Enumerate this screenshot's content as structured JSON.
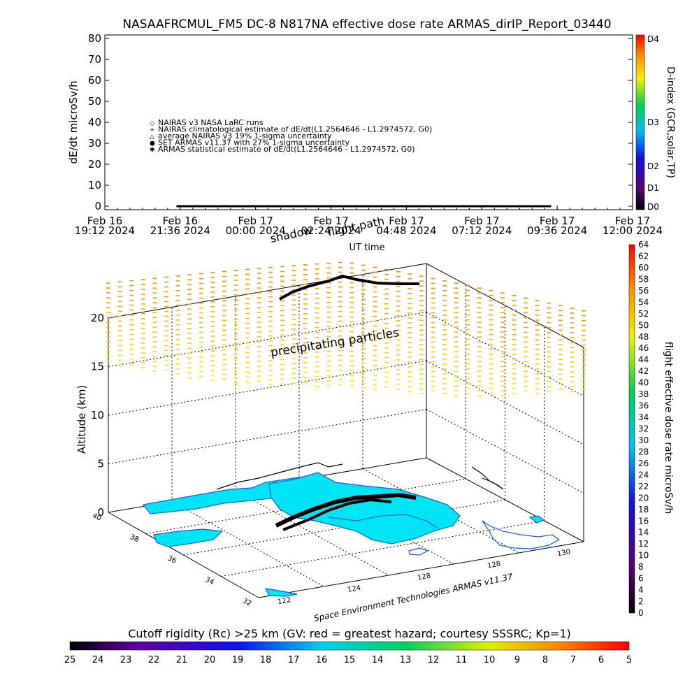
{
  "header": {
    "title": "NASAAFRCMUL_FM5 DC-8    N817NA effective dose rate ARMAS_dirIP_Report_03440"
  },
  "colors": {
    "land": "#00e5f5",
    "coast": "#1060e0",
    "flight": "#000000",
    "background": "#ffffff"
  },
  "chart_data": [
    {
      "type": "line",
      "title": "NASAAFRCMUL_FM5 DC-8    N817NA effective dose rate ARMAS_dirIP_Report_03440",
      "ylabel": "dE/dt microSv/h",
      "xlabel": "UT time",
      "ylim": [
        0,
        80
      ],
      "yticks": [
        "0",
        "10",
        "20",
        "30",
        "40",
        "50",
        "60",
        "70",
        "80"
      ],
      "xticks": [
        {
          "day": "Feb 16",
          "time": "19:12 2024"
        },
        {
          "day": "Feb 16",
          "time": "21:36 2024"
        },
        {
          "day": "Feb 17",
          "time": "00:00 2024"
        },
        {
          "day": "Feb 17",
          "time": "02:24 2024"
        },
        {
          "day": "Feb 17",
          "time": "04:48 2024"
        },
        {
          "day": "Feb 17",
          "time": "07:12 2024"
        },
        {
          "day": "Feb 17",
          "time": "09:36 2024"
        },
        {
          "day": "Feb 17",
          "time": "12:00 2024"
        }
      ],
      "legend": [
        {
          "symbol": "◇",
          "text": "NAIRAS v3 NASA LaRC runs"
        },
        {
          "symbol": "+",
          "text": "NAIRAS climatological estimate of dE/dt(L1.2564646 - L1.2974572, G0)"
        },
        {
          "symbol": "△",
          "text": "average NAIRAS v3 19% 1-sigma uncertainty"
        },
        {
          "symbol": "●",
          "text": "SET ARMAS v11.37 with 27% 1-sigma uncertainty",
          "color": "#1030ff"
        },
        {
          "symbol": "✱",
          "text": "ARMAS statistical estimate of dE/dt(L1.2564646 - L1.2974572, G0)"
        }
      ],
      "series_note_xrange": [
        "Feb 16 21:36 2024",
        "Feb 17 09:36 2024"
      ],
      "series": [
        {
          "name": "SET ARMAS v11.37 with 27% 1-sigma uncertainty",
          "value_approx": 0
        }
      ],
      "annotations": [
        "shadow",
        "flight path"
      ],
      "colorbar": {
        "title": "D-index (GCR,solar,TP)",
        "labels": [
          "D0",
          "D1",
          "D2",
          "D3",
          "D4"
        ]
      }
    },
    {
      "type": "scatter",
      "subtype": "3d-perspective-map",
      "ylabel": "Altitude (km)",
      "zticks": [
        "0",
        "5",
        "10",
        "15",
        "20"
      ],
      "lat_ticks": [
        "32",
        "34",
        "36",
        "38",
        "40"
      ],
      "lon_ticks": [
        "122",
        "124",
        "128",
        "128",
        "130"
      ],
      "annotations": [
        "precipitating particles"
      ],
      "credit": "Space Environment Technologies ARMAS v11.37",
      "flight_altitude_km_approx": 0,
      "precipitating_altitude_km_range": [
        12,
        22
      ],
      "colorbar": {
        "title": "flight effective dose rate microSv/h",
        "ticks": [
          "0",
          "2",
          "4",
          "6",
          "8",
          "10",
          "12",
          "14",
          "16",
          "18",
          "20",
          "22",
          "24",
          "26",
          "28",
          "30",
          "32",
          "34",
          "36",
          "38",
          "40",
          "42",
          "44",
          "46",
          "48",
          "50",
          "52",
          "54",
          "56",
          "58",
          "60",
          "62",
          "64"
        ]
      }
    },
    {
      "type": "heatmap",
      "subtype": "colorbar",
      "title": "Cutoff rigidity (Rc) >25 km (GV: red = greatest hazard; courtesy SSSRC; Kp=1)",
      "ticks": [
        "25",
        "24",
        "23",
        "22",
        "21",
        "20",
        "19",
        "18",
        "17",
        "16",
        "15",
        "14",
        "13",
        "12",
        "11",
        "10",
        "9",
        "8",
        "7",
        "6",
        "5"
      ]
    }
  ]
}
